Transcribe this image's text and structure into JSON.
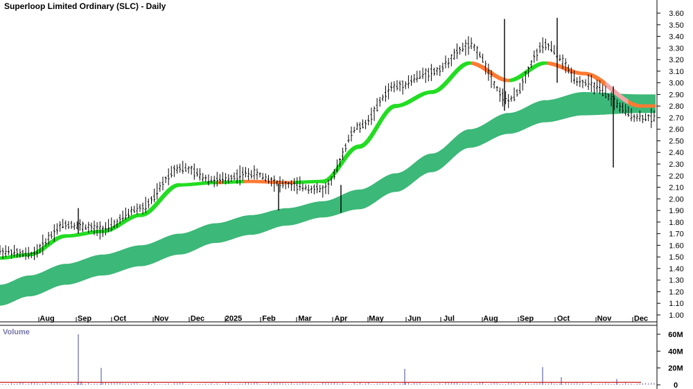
{
  "title": "Superloop Limited Ordinary (SLC) - Daily",
  "volume_panel_label": "Volume",
  "colors": {
    "background": "#ffffff",
    "grid": "#b0b0b0",
    "long_band": "#3cb878",
    "short_band_up": "#22dd22",
    "short_band_down": "#ff7a33",
    "short_band_weak": "#f4a6a6",
    "candle": "#000000",
    "volume_bar": "#7a7ab8",
    "volume_avg_line": "#cc0000",
    "volume_label": "#7777aa"
  },
  "chart_data": [
    {
      "type": "line",
      "subtype": "candlestick_with_moving_average_bands",
      "title": "Superloop Limited Ordinary (SLC) - Daily",
      "x_labels": [
        "Aug",
        "Sep",
        "Oct",
        "Nov",
        "Dec",
        "2025",
        "Feb",
        "Mar",
        "Apr",
        "May",
        "Jun",
        "Jul",
        "Aug",
        "Sep",
        "Oct",
        "Nov",
        "Dec"
      ],
      "y_ticks": [
        "3.60",
        "3.50",
        "3.40",
        "3.30",
        "3.20",
        "3.10",
        "3.00",
        "2.90",
        "2.80",
        "2.70",
        "2.60",
        "2.50",
        "2.40",
        "2.30",
        "2.20",
        "2.10",
        "2.00",
        "1.90",
        "1.80",
        "1.70",
        "1.60",
        "1.50",
        "1.40",
        "1.30",
        "1.20",
        "1.10",
        "1.00"
      ],
      "ylim": [
        1.0,
        3.6
      ],
      "axis_side": "right",
      "grid": false,
      "series": [
        {
          "role": "price_close",
          "x": [
            "Jul",
            "Aug",
            "Sep",
            "Oct",
            "Nov",
            "Dec",
            "2025",
            "Feb",
            "Mar",
            "Apr",
            "May",
            "Jun",
            "Jul",
            "Aug",
            "Sep",
            "Oct",
            "Nov",
            "Dec"
          ],
          "values": [
            1.55,
            1.52,
            1.78,
            1.74,
            1.92,
            2.27,
            2.16,
            2.22,
            2.12,
            2.08,
            2.62,
            2.97,
            3.09,
            3.32,
            2.85,
            3.32,
            3.0,
            2.7
          ]
        },
        {
          "role": "short_ma_band_mid",
          "x": [
            "Jul",
            "Aug",
            "Sep",
            "Oct",
            "Nov",
            "Dec",
            "2025",
            "Feb",
            "Mar",
            "Apr",
            "May",
            "Jun",
            "Jul",
            "Aug",
            "Sep",
            "Oct",
            "Nov",
            "Dec"
          ],
          "values": [
            1.49,
            1.52,
            1.68,
            1.72,
            1.86,
            2.12,
            2.14,
            2.15,
            2.14,
            2.15,
            2.45,
            2.8,
            2.92,
            3.17,
            3.02,
            3.17,
            3.08,
            2.8
          ]
        },
        {
          "role": "long_ma_band_upper",
          "x": [
            "Jul",
            "Aug",
            "Sep",
            "Oct",
            "Nov",
            "Dec",
            "2025",
            "Feb",
            "Mar",
            "Apr",
            "May",
            "Jun",
            "Jul",
            "Aug",
            "Sep",
            "Oct",
            "Nov",
            "Dec"
          ],
          "values": [
            1.26,
            1.34,
            1.44,
            1.52,
            1.6,
            1.7,
            1.79,
            1.86,
            1.92,
            1.98,
            2.08,
            2.22,
            2.39,
            2.6,
            2.74,
            2.85,
            2.92,
            2.9
          ]
        },
        {
          "role": "long_ma_band_lower",
          "x": [
            "Jul",
            "Aug",
            "Sep",
            "Oct",
            "Nov",
            "Dec",
            "2025",
            "Feb",
            "Mar",
            "Apr",
            "May",
            "Jun",
            "Jul",
            "Aug",
            "Sep",
            "Oct",
            "Nov",
            "Dec"
          ],
          "values": [
            1.08,
            1.16,
            1.26,
            1.34,
            1.42,
            1.52,
            1.62,
            1.69,
            1.77,
            1.84,
            1.91,
            2.06,
            2.23,
            2.44,
            2.56,
            2.66,
            2.72,
            2.74
          ]
        }
      ]
    },
    {
      "type": "bar",
      "title": "Volume",
      "y_ticks": [
        "60M",
        "40M",
        "20M",
        "0"
      ],
      "ylim": [
        0,
        64
      ],
      "unit": "M",
      "series": [
        {
          "role": "volume_spikes",
          "x": [
            "Sep",
            "Sep",
            "Oct",
            "Jun",
            "Sep",
            "Oct",
            "Nov"
          ],
          "values": [
            60,
            4,
            20,
            19,
            21,
            9,
            7
          ]
        },
        {
          "role": "volume_average",
          "values": [
            3,
            3
          ]
        }
      ]
    }
  ]
}
